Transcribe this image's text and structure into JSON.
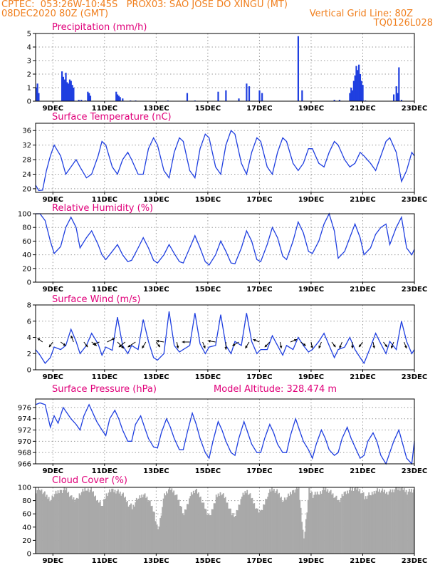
{
  "header": {
    "line1": "CPTEC:  053:26W-10:45S   PROX03: SAO JOSE DO XINGU (MT)",
    "line2_left": "08DEC2020 80Z (GMT)",
    "line2_right": "Vertical Grid Line: 80Z",
    "line3_right": "TQ0126L028"
  },
  "colors": {
    "header": "#f07f1e",
    "title": "#e0007a",
    "series": "#1f3fe0",
    "cloud": "#a9a9a9"
  },
  "x_axis": {
    "start_day": 8.33,
    "end_day": 23,
    "labels": [
      {
        "day": 9,
        "text": "9DEC"
      },
      {
        "day": 11,
        "text": "11DEC"
      },
      {
        "day": 13,
        "text": "13DEC"
      },
      {
        "day": 15,
        "text": "15DEC"
      },
      {
        "day": 17,
        "text": "17DEC"
      },
      {
        "day": 19,
        "text": "19DEC"
      },
      {
        "day": 21,
        "text": "21DEC"
      },
      {
        "day": 23,
        "text": "23DEC"
      }
    ]
  },
  "chart_data": [
    {
      "type": "bar",
      "title": "Precipitation (mm/h)",
      "ylim": [
        0,
        5
      ],
      "yticks": [
        0,
        1,
        2,
        3,
        4,
        5
      ],
      "grid": true,
      "x": [
        8.35,
        8.4,
        8.45,
        9.35,
        9.4,
        9.45,
        9.5,
        9.55,
        9.6,
        9.65,
        9.7,
        9.75,
        9.8,
        10.0,
        10.1,
        10.25,
        10.35,
        10.4,
        10.45,
        11.45,
        11.5,
        11.55,
        11.6,
        11.7,
        12.0,
        12.2,
        13.45,
        14.2,
        14.5,
        15.4,
        15.7,
        16.2,
        16.5,
        16.6,
        17.0,
        17.1,
        18.5,
        18.65,
        19.9,
        20.1,
        20.5,
        20.55,
        20.6,
        20.65,
        20.7,
        20.75,
        20.8,
        20.85,
        20.9,
        20.95,
        21.0,
        21.1,
        22.2,
        22.3,
        22.35,
        22.4,
        22.5
      ],
      "values": [
        1.0,
        1.3,
        0.6,
        2.2,
        1.8,
        1.6,
        2.1,
        1.4,
        1.3,
        1.6,
        1.5,
        1.2,
        1.0,
        0.1,
        0.1,
        0.05,
        0.7,
        0.6,
        0.4,
        0.7,
        0.5,
        0.4,
        0.3,
        0.2,
        0.05,
        0.05,
        0.05,
        0.6,
        0.05,
        0.7,
        0.8,
        0.2,
        1.3,
        1.1,
        0.8,
        0.6,
        4.8,
        0.8,
        0.1,
        0.1,
        0.6,
        1.0,
        0.8,
        1.5,
        1.9,
        2.6,
        2.3,
        2.7,
        2.0,
        1.5,
        1.2,
        0.05,
        0.5,
        1.1,
        0.6,
        2.5,
        0.1
      ]
    },
    {
      "type": "line",
      "title": "Surface Temperature (nC)",
      "ylim": [
        19,
        38
      ],
      "yticks": [
        20,
        24,
        28,
        32,
        36
      ],
      "grid": true,
      "x": [
        8.33,
        8.45,
        8.6,
        8.75,
        8.9,
        9.05,
        9.3,
        9.5,
        9.7,
        9.9,
        10.05,
        10.3,
        10.5,
        10.75,
        10.9,
        11.05,
        11.3,
        11.5,
        11.7,
        11.9,
        12.05,
        12.3,
        12.5,
        12.7,
        12.9,
        13.05,
        13.3,
        13.5,
        13.7,
        13.9,
        14.05,
        14.3,
        14.5,
        14.7,
        14.9,
        15.05,
        15.3,
        15.5,
        15.7,
        15.9,
        16.05,
        16.3,
        16.5,
        16.7,
        16.9,
        17.05,
        17.3,
        17.5,
        17.7,
        17.9,
        18.05,
        18.3,
        18.5,
        18.7,
        18.9,
        19.05,
        19.3,
        19.5,
        19.7,
        19.9,
        20.05,
        20.3,
        20.5,
        20.7,
        20.9,
        21.05,
        21.3,
        21.5,
        21.7,
        21.9,
        22.05,
        22.3,
        22.5,
        22.7,
        22.9,
        23.0
      ],
      "values": [
        21,
        19.5,
        19.6,
        25,
        29,
        32,
        29,
        24,
        26,
        28,
        26,
        23,
        24,
        29,
        33,
        32,
        26,
        24,
        28,
        30,
        28,
        24,
        24,
        31,
        34,
        32,
        25,
        23,
        30,
        34,
        33,
        25,
        23,
        31,
        35,
        34,
        26,
        24,
        32,
        36,
        35,
        27,
        24,
        30,
        34,
        33,
        26,
        24,
        30,
        34,
        33,
        27,
        25,
        27,
        31,
        31,
        27,
        26,
        30,
        33,
        32,
        28,
        26,
        27,
        30,
        29,
        27,
        25,
        29,
        33,
        34,
        30,
        22,
        25,
        30,
        29
      ]
    },
    {
      "type": "line",
      "title": "Relative Humidity (%)",
      "ylim": [
        0,
        100
      ],
      "yticks": [
        0,
        20,
        40,
        60,
        80,
        100
      ],
      "grid": true,
      "x": [
        8.33,
        8.5,
        8.7,
        8.9,
        9.05,
        9.3,
        9.5,
        9.7,
        9.9,
        10.05,
        10.3,
        10.5,
        10.75,
        10.9,
        11.05,
        11.3,
        11.5,
        11.7,
        11.9,
        12.05,
        12.3,
        12.5,
        12.7,
        12.9,
        13.05,
        13.3,
        13.5,
        13.7,
        13.9,
        14.05,
        14.3,
        14.5,
        14.7,
        14.9,
        15.05,
        15.3,
        15.5,
        15.7,
        15.9,
        16.05,
        16.3,
        16.5,
        16.7,
        16.9,
        17.05,
        17.3,
        17.5,
        17.7,
        17.9,
        18.05,
        18.3,
        18.5,
        18.7,
        18.9,
        19.05,
        19.3,
        19.5,
        19.7,
        19.9,
        20.05,
        20.3,
        20.5,
        20.7,
        20.9,
        21.05,
        21.3,
        21.5,
        21.7,
        21.9,
        22.05,
        22.3,
        22.5,
        22.7,
        22.9,
        23.0
      ],
      "values": [
        100,
        100,
        90,
        60,
        42,
        52,
        80,
        95,
        80,
        50,
        65,
        75,
        55,
        40,
        33,
        45,
        55,
        40,
        30,
        32,
        50,
        65,
        50,
        32,
        28,
        40,
        55,
        42,
        30,
        28,
        50,
        68,
        50,
        30,
        25,
        40,
        60,
        45,
        28,
        27,
        50,
        75,
        60,
        33,
        30,
        55,
        80,
        65,
        38,
        33,
        60,
        88,
        72,
        45,
        42,
        60,
        85,
        100,
        75,
        35,
        45,
        65,
        85,
        65,
        40,
        50,
        70,
        80,
        85,
        55,
        80,
        95,
        50,
        40,
        48
      ]
    },
    {
      "type": "line",
      "title": "Surface Wind (m/s)",
      "ylim": [
        0,
        8
      ],
      "yticks": [
        0,
        2,
        4,
        6,
        8
      ],
      "grid": true,
      "x": [
        8.33,
        8.5,
        8.7,
        8.9,
        9.05,
        9.3,
        9.5,
        9.7,
        9.9,
        10.05,
        10.3,
        10.5,
        10.75,
        10.9,
        11.05,
        11.3,
        11.5,
        11.7,
        11.9,
        12.05,
        12.3,
        12.5,
        12.7,
        12.9,
        13.05,
        13.3,
        13.5,
        13.7,
        13.9,
        14.05,
        14.3,
        14.5,
        14.7,
        14.9,
        15.05,
        15.3,
        15.5,
        15.7,
        15.9,
        16.05,
        16.3,
        16.5,
        16.7,
        16.9,
        17.05,
        17.3,
        17.5,
        17.7,
        17.9,
        18.05,
        18.3,
        18.5,
        18.7,
        18.9,
        19.05,
        19.3,
        19.5,
        19.7,
        19.9,
        20.05,
        20.3,
        20.5,
        20.7,
        20.9,
        21.05,
        21.3,
        21.5,
        21.7,
        21.9,
        22.05,
        22.3,
        22.5,
        22.7,
        22.9,
        23.0
      ],
      "values": [
        2.5,
        1.8,
        0.8,
        1.5,
        2.8,
        2.5,
        3.0,
        5.0,
        3.5,
        2.0,
        3.0,
        4.5,
        3.2,
        1.8,
        2.8,
        2.4,
        6.5,
        3.0,
        2.0,
        3.0,
        2.5,
        6.2,
        3.5,
        1.5,
        1.2,
        2.0,
        7.2,
        3.0,
        2.2,
        2.5,
        3.0,
        7.0,
        3.2,
        2.0,
        2.8,
        3.0,
        6.8,
        3.0,
        2.0,
        3.5,
        3.0,
        7.0,
        3.5,
        2.0,
        2.5,
        2.5,
        4.2,
        3.0,
        1.8,
        3.0,
        2.5,
        4.0,
        3.0,
        2.2,
        2.5,
        3.5,
        4.5,
        3.0,
        1.5,
        2.5,
        2.8,
        4.0,
        2.5,
        1.5,
        0.8,
        2.8,
        4.5,
        3.2,
        2.0,
        3.5,
        2.5,
        6.0,
        3.5,
        2.0,
        2.5
      ],
      "vectors": [
        {
          "x": 8.6,
          "u": -0.4,
          "v": 0.3
        },
        {
          "x": 9.0,
          "u": -0.3,
          "v": -0.4
        },
        {
          "x": 9.3,
          "u": 0.4,
          "v": -0.3
        },
        {
          "x": 9.8,
          "u": -0.2,
          "v": 0.5
        },
        {
          "x": 10.2,
          "u": 0.3,
          "v": -0.4
        },
        {
          "x": 10.5,
          "u": 0.4,
          "v": -0.3
        },
        {
          "x": 10.8,
          "u": -0.5,
          "v": -0.2
        },
        {
          "x": 11.1,
          "u": 0.6,
          "v": 0.3
        },
        {
          "x": 11.5,
          "u": 0.5,
          "v": -0.5
        },
        {
          "x": 11.8,
          "u": -0.5,
          "v": -0.4
        },
        {
          "x": 12.2,
          "u": -0.6,
          "v": -0.4
        },
        {
          "x": 12.6,
          "u": -0.3,
          "v": -0.5
        },
        {
          "x": 13.0,
          "u": 0.3,
          "v": -0.4
        },
        {
          "x": 13.3,
          "u": -0.6,
          "v": 0.1
        },
        {
          "x": 13.8,
          "u": 0.1,
          "v": -0.5
        },
        {
          "x": 14.3,
          "u": -0.6,
          "v": 0.0
        },
        {
          "x": 14.8,
          "u": 0.2,
          "v": -0.5
        },
        {
          "x": 15.3,
          "u": -0.6,
          "v": 0.1
        },
        {
          "x": 15.7,
          "u": 0.0,
          "v": -0.6
        },
        {
          "x": 16.2,
          "u": -0.5,
          "v": -0.3
        },
        {
          "x": 16.6,
          "u": -0.3,
          "v": -0.5
        },
        {
          "x": 17.0,
          "u": -0.5,
          "v": 0.2
        },
        {
          "x": 17.4,
          "u": -0.4,
          "v": -0.4
        },
        {
          "x": 17.8,
          "u": 0.1,
          "v": -0.5
        },
        {
          "x": 18.2,
          "u": 0.5,
          "v": 0.2
        },
        {
          "x": 18.6,
          "u": 0.4,
          "v": -0.3
        },
        {
          "x": 19.0,
          "u": 0.1,
          "v": -0.5
        },
        {
          "x": 19.4,
          "u": -0.2,
          "v": -0.5
        },
        {
          "x": 19.8,
          "u": 0.3,
          "v": -0.4
        },
        {
          "x": 20.2,
          "u": -0.2,
          "v": -0.5
        },
        {
          "x": 20.6,
          "u": 0.0,
          "v": -0.5
        },
        {
          "x": 21.0,
          "u": -0.3,
          "v": -0.4
        },
        {
          "x": 21.4,
          "u": 0.1,
          "v": -0.5
        },
        {
          "x": 21.8,
          "u": 0.3,
          "v": -0.4
        },
        {
          "x": 22.2,
          "u": -0.2,
          "v": -0.5
        },
        {
          "x": 22.6,
          "u": 0.2,
          "v": -0.5
        }
      ]
    },
    {
      "type": "line",
      "title": "Surface Pressure (hPa)",
      "subtitle": "Model Altitude: 328.474 m",
      "ylim": [
        966,
        977.5
      ],
      "yticks": [
        966,
        968,
        970,
        972,
        974,
        976
      ],
      "grid": true,
      "x": [
        8.33,
        8.5,
        8.7,
        8.9,
        9.05,
        9.2,
        9.4,
        9.55,
        9.7,
        9.9,
        10.05,
        10.2,
        10.4,
        10.55,
        10.7,
        10.9,
        11.05,
        11.2,
        11.4,
        11.55,
        11.7,
        11.9,
        12.05,
        12.2,
        12.4,
        12.55,
        12.7,
        12.9,
        13.05,
        13.2,
        13.4,
        13.55,
        13.7,
        13.9,
        14.05,
        14.2,
        14.4,
        14.55,
        14.7,
        14.9,
        15.05,
        15.2,
        15.4,
        15.55,
        15.7,
        15.9,
        16.05,
        16.2,
        16.4,
        16.55,
        16.7,
        16.9,
        17.05,
        17.2,
        17.4,
        17.55,
        17.7,
        17.9,
        18.05,
        18.2,
        18.4,
        18.55,
        18.7,
        18.9,
        19.05,
        19.2,
        19.4,
        19.55,
        19.7,
        19.9,
        20.05,
        20.2,
        20.4,
        20.55,
        20.7,
        20.9,
        21.05,
        21.2,
        21.4,
        21.55,
        21.7,
        21.9,
        22.05,
        22.2,
        22.4,
        22.55,
        22.7,
        22.9,
        23.0
      ],
      "values": [
        976.5,
        976.8,
        976.5,
        972.5,
        974.5,
        973.2,
        976,
        975,
        974,
        973,
        972,
        974.5,
        976.5,
        975,
        973.5,
        972,
        971,
        974,
        975.5,
        974,
        972,
        970,
        970,
        973,
        974.5,
        972.5,
        970.5,
        969,
        968.8,
        971.5,
        974,
        972.5,
        970.5,
        968.5,
        968.5,
        971.5,
        975,
        973,
        970.5,
        968,
        967,
        970,
        973.5,
        972,
        970,
        968,
        967.5,
        970.5,
        973.5,
        971.5,
        969.5,
        968,
        968,
        970.5,
        973,
        971.5,
        969.5,
        968,
        968,
        971,
        974,
        972,
        970,
        968.5,
        967,
        969.5,
        972,
        970.5,
        968.5,
        967.5,
        968,
        970.5,
        972.5,
        970.5,
        969,
        967,
        967.5,
        970,
        971.5,
        970,
        967.5,
        966,
        968,
        970,
        972,
        969.5,
        967,
        965.5,
        970
      ]
    },
    {
      "type": "area",
      "title": "Cloud Cover (%)",
      "ylim": [
        0,
        100
      ],
      "yticks": [
        0,
        20,
        40,
        60,
        80,
        100
      ],
      "grid": true,
      "x": [
        8.33,
        8.5,
        8.7,
        8.9,
        9.05,
        9.3,
        9.5,
        9.7,
        9.9,
        10.05,
        10.3,
        10.5,
        10.75,
        10.9,
        11.05,
        11.3,
        11.5,
        11.7,
        11.9,
        12.05,
        12.3,
        12.5,
        12.7,
        12.9,
        13.05,
        13.3,
        13.5,
        13.7,
        13.9,
        14.05,
        14.3,
        14.5,
        14.7,
        14.9,
        15.05,
        15.3,
        15.5,
        15.7,
        15.9,
        16.05,
        16.3,
        16.5,
        16.7,
        16.9,
        17.05,
        17.3,
        17.5,
        17.7,
        17.9,
        18.05,
        18.3,
        18.5,
        18.7,
        18.9,
        19.05,
        19.3,
        19.5,
        19.7,
        19.9,
        20.05,
        20.3,
        20.5,
        20.7,
        20.9,
        21.05,
        21.3,
        21.5,
        21.7,
        21.9,
        22.05,
        22.3,
        22.5,
        22.7,
        22.9,
        23.0
      ],
      "values": [
        95,
        98,
        88,
        82,
        90,
        95,
        97,
        85,
        80,
        92,
        98,
        95,
        78,
        72,
        90,
        96,
        94,
        88,
        75,
        70,
        85,
        90,
        80,
        62,
        35,
        88,
        98,
        92,
        75,
        60,
        88,
        96,
        85,
        65,
        55,
        85,
        92,
        80,
        60,
        58,
        86,
        95,
        82,
        65,
        62,
        90,
        98,
        92,
        80,
        85,
        95,
        100,
        20,
        95,
        88,
        92,
        98,
        95,
        85,
        80,
        92,
        97,
        98,
        95,
        85,
        90,
        96,
        95,
        92,
        95,
        98,
        98,
        93,
        95,
        97
      ]
    }
  ]
}
